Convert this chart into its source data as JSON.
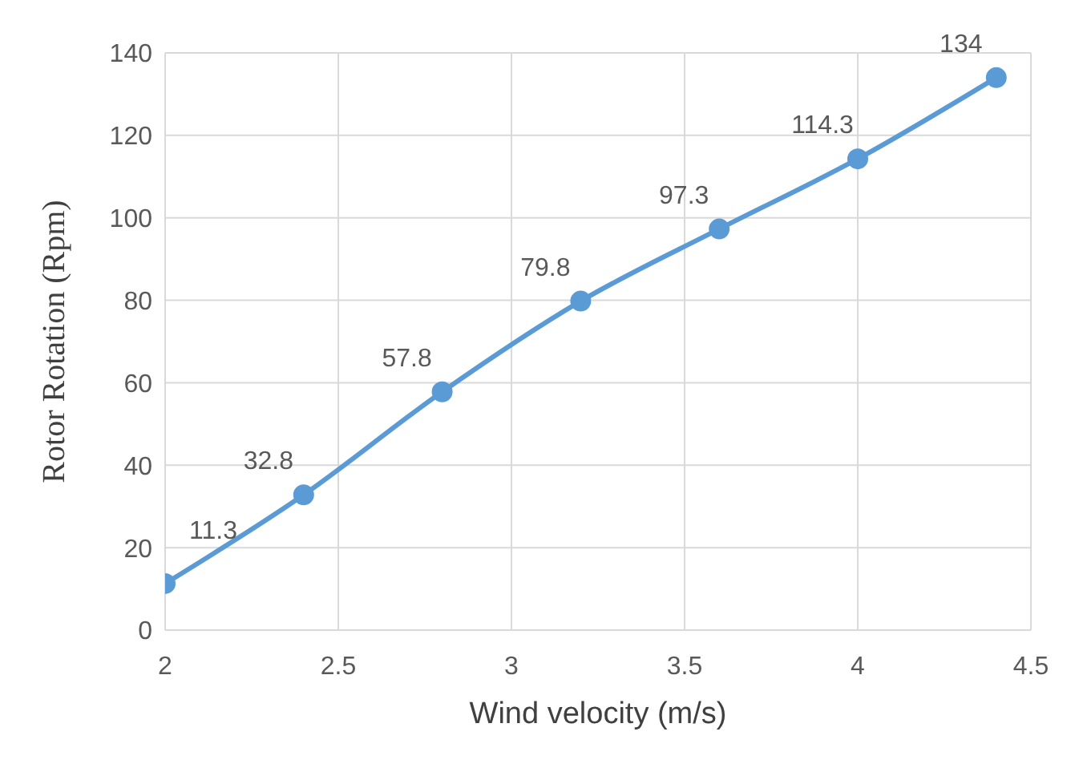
{
  "chart_data": {
    "type": "line",
    "xlabel": "Wind velocity  (m/s)",
    "ylabel": "Rotor Rotation (Rpm)",
    "x": [
      2,
      2.4,
      2.8,
      3.2,
      3.6,
      4,
      4.4
    ],
    "series": [
      {
        "color": "#5b9bd5",
        "values": [
          11.3,
          32.8,
          57.8,
          79.8,
          97.3,
          114.3,
          134
        ]
      }
    ],
    "xlim": [
      2,
      4.5
    ],
    "xticks": [
      2,
      2.5,
      3,
      3.5,
      4,
      4.5
    ],
    "ylim": [
      0,
      140
    ],
    "yticks": [
      0,
      20,
      40,
      60,
      80,
      100,
      120,
      140
    ],
    "grid": true,
    "marker": "circle",
    "line_style": "solid",
    "data_labels": true,
    "legend": false
  }
}
